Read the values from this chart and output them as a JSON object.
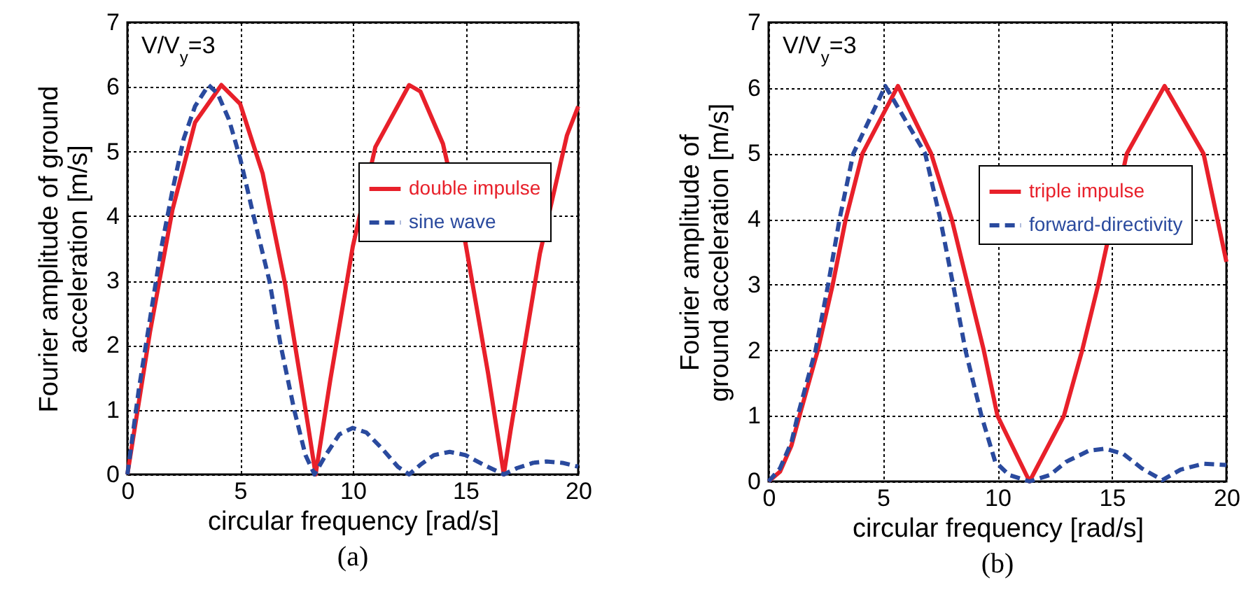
{
  "chart_data": [
    {
      "type": "line",
      "title": "(a)",
      "xlabel": "circular frequency [rad/s]",
      "ylabel": "Fourier amplitude of ground\nacceleration [m/s]",
      "annotations": [
        "V/V$_{y}$=3"
      ],
      "xlim": [
        0,
        20
      ],
      "xticks": [
        0,
        5,
        10,
        15,
        20
      ],
      "ylim": [
        0,
        7
      ],
      "yticks": [
        0,
        1,
        2,
        3,
        4,
        5,
        6,
        7
      ],
      "grid": true,
      "legend": "right",
      "series": [
        {
          "name": "double impulse",
          "color": "#e8202a",
          "line_style": "solid",
          "x": [
            0,
            1,
            2,
            3,
            4.17,
            5,
            6,
            7,
            8,
            8.35,
            9,
            10,
            11,
            12.5,
            13,
            14,
            15,
            16,
            16.7,
            17,
            18.3,
            19.5,
            20
          ],
          "values": [
            0,
            2.2,
            4.1,
            5.45,
            6.03,
            5.74,
            4.66,
            2.94,
            0.79,
            0,
            1.46,
            3.53,
            5.07,
            6.03,
            5.93,
            5.12,
            3.58,
            1.57,
            0,
            0.68,
            3.42,
            5.25,
            5.7
          ]
        },
        {
          "name": "sine wave",
          "color": "#2a4a9e",
          "line_style": "dashed",
          "x": [
            0,
            0.5,
            1,
            1.5,
            2,
            2.5,
            3,
            3.6,
            4,
            4.5,
            5,
            5.6,
            6.3,
            6.8,
            7.4,
            7.9,
            8.3,
            8.8,
            9.4,
            10,
            10.6,
            11.3,
            12,
            12.5,
            13,
            13.6,
            14.3,
            15,
            15.8,
            16.7,
            17.3,
            18,
            18.6,
            19.3,
            20
          ],
          "values": [
            0,
            1.3,
            2.4,
            3.5,
            4.4,
            5.2,
            5.7,
            6.03,
            5.9,
            5.5,
            4.9,
            4,
            3,
            2,
            1,
            0.3,
            0,
            0.3,
            0.62,
            0.72,
            0.65,
            0.4,
            0.12,
            0,
            0.15,
            0.3,
            0.35,
            0.3,
            0.15,
            0,
            0.1,
            0.18,
            0.2,
            0.18,
            0.12
          ]
        }
      ]
    },
    {
      "type": "line",
      "title": "(b)",
      "xlabel": "circular frequency [rad/s]",
      "ylabel": "Fourier amplitude of\nground acceleration [m/s]",
      "annotations": [
        "V/V$_{y}$=3"
      ],
      "xlim": [
        0,
        20
      ],
      "xticks": [
        0,
        5,
        10,
        15,
        20
      ],
      "ylim": [
        0,
        7
      ],
      "yticks": [
        0,
        1,
        2,
        3,
        4,
        5,
        6,
        7
      ],
      "grid": true,
      "legend": "right",
      "series": [
        {
          "name": "triple impulse",
          "color": "#e8202a",
          "line_style": "solid",
          "x": [
            0,
            0.5,
            1,
            1.35,
            2.15,
            2.8,
            3.37,
            4.1,
            5.65,
            7.1,
            8,
            8.7,
            9.4,
            10,
            11.4,
            12.9,
            13.7,
            14.4,
            15.65,
            17.3,
            19,
            20
          ],
          "values": [
            0,
            0.15,
            0.55,
            1,
            2,
            3,
            4,
            5,
            6.03,
            5,
            4,
            3,
            2,
            1,
            0,
            1,
            2,
            3,
            5,
            6.03,
            5,
            3.35
          ]
        },
        {
          "name": "forward-directivity",
          "color": "#2a4a9e",
          "line_style": "dashed",
          "x": [
            0,
            0.5,
            1,
            1.27,
            2.05,
            2.6,
            3.1,
            3.7,
            5.1,
            6.84,
            7.5,
            8.06,
            8.6,
            9.3,
            9.9,
            10.5,
            11.4,
            12.3,
            13,
            14,
            14.7,
            15.5,
            16.3,
            17.2,
            18,
            19,
            20
          ],
          "values": [
            0,
            0.2,
            0.6,
            1,
            2,
            3,
            4,
            5,
            6.03,
            5,
            4,
            3,
            2,
            1,
            0.3,
            0.1,
            0,
            0.1,
            0.3,
            0.47,
            0.5,
            0.42,
            0.2,
            0.02,
            0.18,
            0.27,
            0.25
          ]
        }
      ]
    }
  ]
}
